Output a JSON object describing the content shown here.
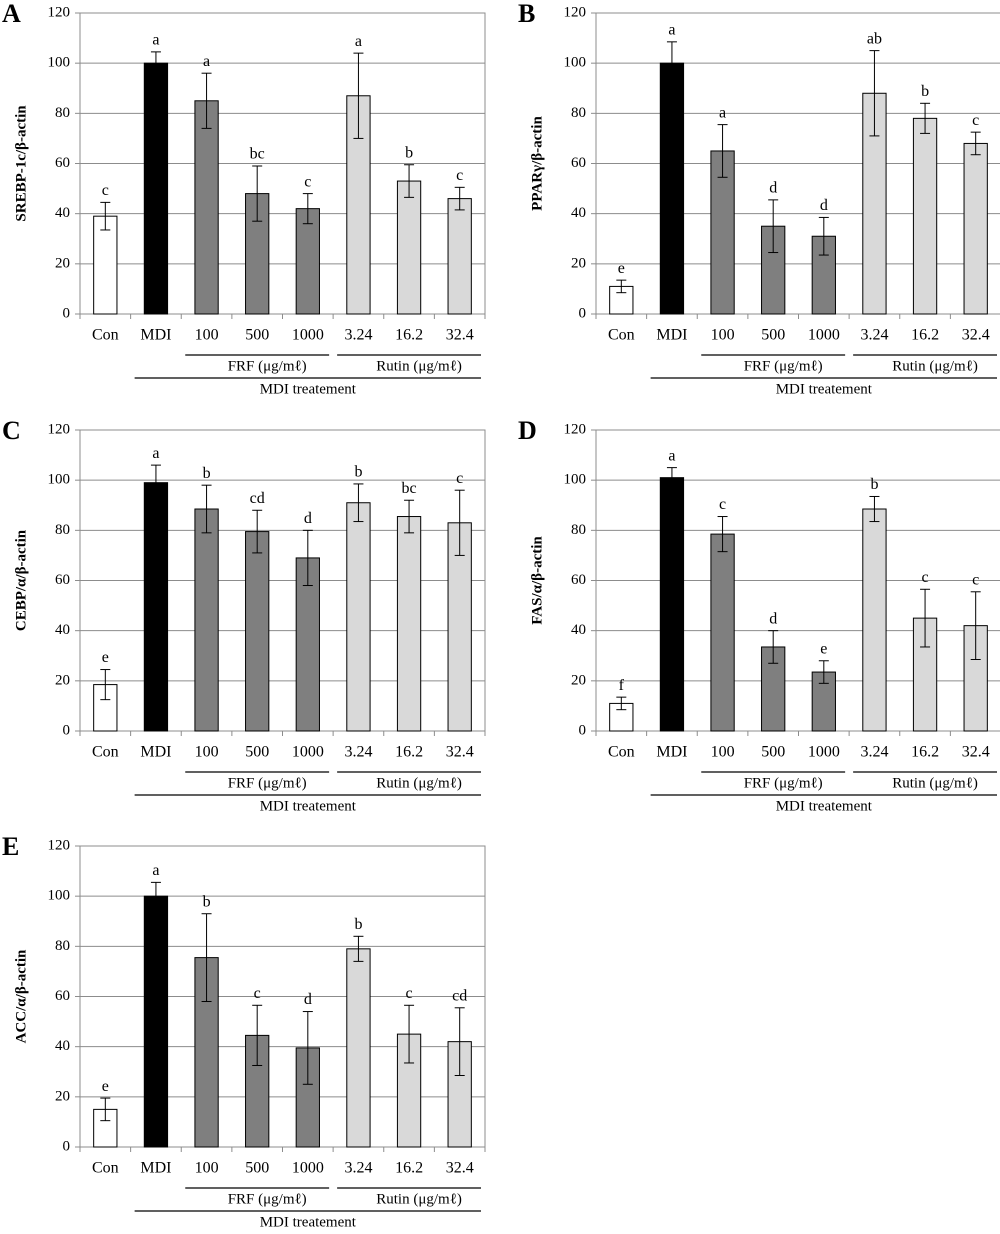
{
  "chart_data": [
    {
      "type": "bar",
      "panel": "A",
      "ylabel": "SREBP-1c/β-actin",
      "categories": [
        "Con",
        "MDI",
        "100",
        "500",
        "1000",
        "3.24",
        "16.2",
        "32.4"
      ],
      "values": [
        39,
        100,
        85,
        48,
        42,
        87,
        53,
        46
      ],
      "errors": [
        5.5,
        4.5,
        11,
        11,
        6,
        17,
        6.5,
        4.5
      ],
      "annotations": [
        "c",
        "a",
        "a",
        "bc",
        "c",
        "a",
        "b",
        "c"
      ],
      "colors": [
        "#ffffff",
        "#000000",
        "#7f7f7f",
        "#7f7f7f",
        "#7f7f7f",
        "#d9d9d9",
        "#d9d9d9",
        "#d9d9d9"
      ],
      "groups": [
        {
          "label": "FRF (μg/mℓ)",
          "members": [
            "100",
            "1000"
          ],
          "level": 1
        },
        {
          "label": "Rutin (μg/mℓ)",
          "members": [
            "3.24",
            "32.4"
          ],
          "level": 1
        },
        {
          "label": "MDI treatement",
          "members": [
            "MDI",
            "32.4"
          ],
          "level": 2
        }
      ],
      "ylim": [
        0,
        120
      ],
      "yticks": [
        0,
        20,
        40,
        60,
        80,
        100,
        120
      ],
      "grid": true
    },
    {
      "type": "bar",
      "panel": "B",
      "ylabel": "PPARγ/β-actin",
      "categories": [
        "Con",
        "MDI",
        "100",
        "500",
        "1000",
        "3.24",
        "16.2",
        "32.4"
      ],
      "values": [
        11,
        100,
        65,
        35,
        31,
        88,
        78,
        68
      ],
      "errors": [
        2.5,
        8.5,
        10.5,
        10.5,
        7.5,
        17,
        6,
        4.5
      ],
      "annotations": [
        "e",
        "a",
        "a",
        "d",
        "d",
        "ab",
        "b",
        "c"
      ],
      "colors": [
        "#ffffff",
        "#000000",
        "#7f7f7f",
        "#7f7f7f",
        "#7f7f7f",
        "#d9d9d9",
        "#d9d9d9",
        "#d9d9d9"
      ],
      "groups": [
        {
          "label": "FRF (μg/mℓ)",
          "members": [
            "100",
            "1000"
          ],
          "level": 1
        },
        {
          "label": "Rutin (μg/mℓ)",
          "members": [
            "3.24",
            "32.4"
          ],
          "level": 1
        },
        {
          "label": "MDI treatement",
          "members": [
            "MDI",
            "32.4"
          ],
          "level": 2
        }
      ],
      "ylim": [
        0,
        120
      ],
      "yticks": [
        0,
        20,
        40,
        60,
        80,
        100,
        120
      ],
      "grid": true
    },
    {
      "type": "bar",
      "panel": "C",
      "ylabel": "CEBP/α/β-actin",
      "categories": [
        "Con",
        "MDI",
        "100",
        "500",
        "1000",
        "3.24",
        "16.2",
        "32.4"
      ],
      "values": [
        18.5,
        99,
        88.5,
        79.5,
        69,
        91,
        85.5,
        83
      ],
      "errors": [
        6,
        7,
        9.5,
        8.5,
        11,
        7.5,
        6.5,
        13
      ],
      "annotations": [
        "e",
        "a",
        "b",
        "cd",
        "d",
        "b",
        "bc",
        "c"
      ],
      "colors": [
        "#ffffff",
        "#000000",
        "#7f7f7f",
        "#7f7f7f",
        "#7f7f7f",
        "#d9d9d9",
        "#d9d9d9",
        "#d9d9d9"
      ],
      "groups": [
        {
          "label": "FRF (μg/mℓ)",
          "members": [
            "100",
            "1000"
          ],
          "level": 1
        },
        {
          "label": "Rutin (μg/mℓ)",
          "members": [
            "3.24",
            "32.4"
          ],
          "level": 1
        },
        {
          "label": "MDI treatement",
          "members": [
            "MDI",
            "32.4"
          ],
          "level": 2
        }
      ],
      "ylim": [
        0,
        120
      ],
      "yticks": [
        0,
        20,
        40,
        60,
        80,
        100,
        120
      ],
      "grid": true
    },
    {
      "type": "bar",
      "panel": "D",
      "ylabel": "FAS/α/β-actin",
      "categories": [
        "Con",
        "MDI",
        "100",
        "500",
        "1000",
        "3.24",
        "16.2",
        "32.4"
      ],
      "values": [
        11,
        101,
        78.5,
        33.5,
        23.5,
        88.5,
        45,
        42
      ],
      "errors": [
        2.5,
        4,
        7,
        6.5,
        4.5,
        5,
        11.5,
        13.5
      ],
      "annotations": [
        "f",
        "a",
        "c",
        "d",
        "e",
        "b",
        "c",
        "c"
      ],
      "colors": [
        "#ffffff",
        "#000000",
        "#7f7f7f",
        "#7f7f7f",
        "#7f7f7f",
        "#d9d9d9",
        "#d9d9d9",
        "#d9d9d9"
      ],
      "groups": [
        {
          "label": "FRF (μg/mℓ)",
          "members": [
            "100",
            "1000"
          ],
          "level": 1
        },
        {
          "label": "Rutin (μg/mℓ)",
          "members": [
            "3.24",
            "32.4"
          ],
          "level": 1
        },
        {
          "label": "MDI treatement",
          "members": [
            "MDI",
            "32.4"
          ],
          "level": 2
        }
      ],
      "ylim": [
        0,
        120
      ],
      "yticks": [
        0,
        20,
        40,
        60,
        80,
        100,
        120
      ],
      "grid": true
    },
    {
      "type": "bar",
      "panel": "E",
      "ylabel": "ACC/α/β-actin",
      "categories": [
        "Con",
        "MDI",
        "100",
        "500",
        "1000",
        "3.24",
        "16.2",
        "32.4"
      ],
      "values": [
        15,
        100,
        75.5,
        44.5,
        39.5,
        79,
        45,
        42
      ],
      "errors": [
        4.5,
        5.5,
        17.5,
        12,
        14.5,
        5,
        11.5,
        13.5
      ],
      "annotations": [
        "e",
        "a",
        "b",
        "c",
        "d",
        "b",
        "c",
        "cd"
      ],
      "colors": [
        "#ffffff",
        "#000000",
        "#7f7f7f",
        "#7f7f7f",
        "#7f7f7f",
        "#d9d9d9",
        "#d9d9d9",
        "#d9d9d9"
      ],
      "groups": [
        {
          "label": "FRF (μg/mℓ)",
          "members": [
            "100",
            "1000"
          ],
          "level": 1
        },
        {
          "label": "Rutin (μg/mℓ)",
          "members": [
            "3.24",
            "32.4"
          ],
          "level": 1
        },
        {
          "label": "MDI treatement",
          "members": [
            "MDI",
            "32.4"
          ],
          "level": 2
        }
      ],
      "ylim": [
        0,
        120
      ],
      "yticks": [
        0,
        20,
        40,
        60,
        80,
        100,
        120
      ],
      "grid": true
    }
  ]
}
